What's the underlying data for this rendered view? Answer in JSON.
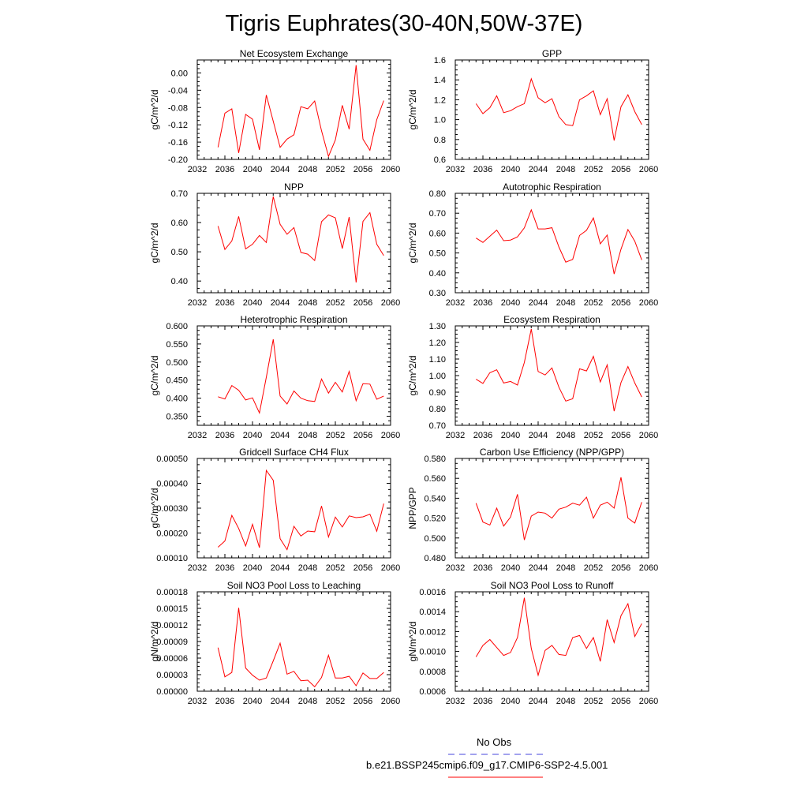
{
  "figure": {
    "title": "Tigris Euphrates(30-40N,50W-37E)",
    "line_color": "#ff0000",
    "obs_color": "#4444dd"
  },
  "legend": {
    "obs_label": "No Obs",
    "model_label": "b.e21.BSSP245cmip6.f09_g17.CMIP6-SSP2-4.5.001"
  },
  "chart_data": [
    {
      "type": "line",
      "title": "Net Ecosystem Exchange",
      "ylabel": "gC/m^2/d",
      "xlim": [
        2032,
        2060
      ],
      "ylim": [
        -0.2,
        0.03
      ],
      "xticks": [
        2032,
        2036,
        2040,
        2044,
        2048,
        2052,
        2056,
        2060
      ],
      "yticks": [
        -0.2,
        -0.16,
        -0.12,
        -0.08,
        -0.04,
        0.0
      ],
      "ytick_labels": [
        "-0.20",
        "-0.16",
        "-0.12",
        "-0.08",
        "-0.04",
        "0.00"
      ],
      "x": [
        2035,
        2036,
        2037,
        2038,
        2039,
        2040,
        2041,
        2042,
        2043,
        2044,
        2045,
        2046,
        2047,
        2048,
        2049,
        2050,
        2051,
        2052,
        2053,
        2054,
        2055,
        2056,
        2057,
        2058,
        2059
      ],
      "y": [
        -0.172,
        -0.093,
        -0.083,
        -0.185,
        -0.096,
        -0.107,
        -0.178,
        -0.051,
        -0.112,
        -0.172,
        -0.153,
        -0.143,
        -0.078,
        -0.083,
        -0.065,
        -0.134,
        -0.193,
        -0.155,
        -0.075,
        -0.13,
        0.018,
        -0.153,
        -0.179,
        -0.108,
        -0.064
      ]
    },
    {
      "type": "line",
      "title": "GPP",
      "ylabel": "gC/m^2/d",
      "xlim": [
        2032,
        2060
      ],
      "ylim": [
        0.6,
        1.6
      ],
      "xticks": [
        2032,
        2036,
        2040,
        2044,
        2048,
        2052,
        2056,
        2060
      ],
      "yticks": [
        0.6,
        0.8,
        1.0,
        1.2,
        1.4,
        1.6
      ],
      "ytick_labels": [
        "0.6",
        "0.8",
        "1.0",
        "1.2",
        "1.4",
        "1.6"
      ],
      "x": [
        2035,
        2036,
        2037,
        2038,
        2039,
        2040,
        2041,
        2042,
        2043,
        2044,
        2045,
        2046,
        2047,
        2048,
        2049,
        2050,
        2051,
        2052,
        2053,
        2054,
        2055,
        2056,
        2057,
        2058,
        2059
      ],
      "y": [
        1.16,
        1.06,
        1.12,
        1.24,
        1.07,
        1.09,
        1.13,
        1.16,
        1.41,
        1.22,
        1.17,
        1.21,
        1.03,
        0.95,
        0.94,
        1.2,
        1.24,
        1.29,
        1.05,
        1.21,
        0.79,
        1.13,
        1.25,
        1.08,
        0.95
      ]
    },
    {
      "type": "line",
      "title": "NPP",
      "ylabel": "gC/m^2/d",
      "xlim": [
        2032,
        2060
      ],
      "ylim": [
        0.36,
        0.7
      ],
      "xticks": [
        2032,
        2036,
        2040,
        2044,
        2048,
        2052,
        2056,
        2060
      ],
      "yticks": [
        0.4,
        0.5,
        0.6,
        0.7
      ],
      "ytick_labels": [
        "0.40",
        "0.50",
        "0.60",
        "0.70"
      ],
      "x": [
        2035,
        2036,
        2037,
        2038,
        2039,
        2040,
        2041,
        2042,
        2043,
        2044,
        2045,
        2046,
        2047,
        2048,
        2049,
        2050,
        2051,
        2052,
        2053,
        2054,
        2055,
        2056,
        2057,
        2058,
        2059
      ],
      "y": [
        0.588,
        0.508,
        0.537,
        0.621,
        0.51,
        0.526,
        0.556,
        0.532,
        0.689,
        0.594,
        0.56,
        0.583,
        0.498,
        0.492,
        0.47,
        0.603,
        0.626,
        0.616,
        0.511,
        0.619,
        0.395,
        0.604,
        0.634,
        0.526,
        0.487
      ]
    },
    {
      "type": "line",
      "title": "Autotrophic Respiration",
      "ylabel": "gC/m^2/d",
      "xlim": [
        2032,
        2060
      ],
      "ylim": [
        0.3,
        0.8
      ],
      "xticks": [
        2032,
        2036,
        2040,
        2044,
        2048,
        2052,
        2056,
        2060
      ],
      "yticks": [
        0.3,
        0.4,
        0.5,
        0.6,
        0.7,
        0.8
      ],
      "ytick_labels": [
        "0.30",
        "0.40",
        "0.50",
        "0.60",
        "0.70",
        "0.80"
      ],
      "x": [
        2035,
        2036,
        2037,
        2038,
        2039,
        2040,
        2041,
        2042,
        2043,
        2044,
        2045,
        2046,
        2047,
        2048,
        2049,
        2050,
        2051,
        2052,
        2053,
        2054,
        2055,
        2056,
        2057,
        2058,
        2059
      ],
      "y": [
        0.575,
        0.553,
        0.584,
        0.615,
        0.562,
        0.565,
        0.581,
        0.626,
        0.717,
        0.621,
        0.621,
        0.627,
        0.53,
        0.454,
        0.468,
        0.588,
        0.614,
        0.676,
        0.546,
        0.59,
        0.394,
        0.519,
        0.618,
        0.559,
        0.465
      ]
    },
    {
      "type": "line",
      "title": "Heterotrophic Respiration",
      "ylabel": "gC/m^2/d",
      "xlim": [
        2032,
        2060
      ],
      "ylim": [
        0.325,
        0.6
      ],
      "xticks": [
        2032,
        2036,
        2040,
        2044,
        2048,
        2052,
        2056,
        2060
      ],
      "yticks": [
        0.35,
        0.4,
        0.45,
        0.5,
        0.55,
        0.6
      ],
      "ytick_labels": [
        "0.350",
        "0.400",
        "0.450",
        "0.500",
        "0.550",
        "0.600"
      ],
      "x": [
        2035,
        2036,
        2037,
        2038,
        2039,
        2040,
        2041,
        2042,
        2043,
        2044,
        2045,
        2046,
        2047,
        2048,
        2049,
        2050,
        2051,
        2052,
        2053,
        2054,
        2055,
        2056,
        2057,
        2058,
        2059
      ],
      "y": [
        0.404,
        0.398,
        0.435,
        0.422,
        0.395,
        0.401,
        0.359,
        0.458,
        0.563,
        0.406,
        0.384,
        0.42,
        0.4,
        0.393,
        0.391,
        0.453,
        0.414,
        0.444,
        0.417,
        0.474,
        0.393,
        0.44,
        0.439,
        0.397,
        0.406
      ]
    },
    {
      "type": "line",
      "title": "Ecosystem Respiration",
      "ylabel": "gC/m^2/d",
      "xlim": [
        2032,
        2060
      ],
      "ylim": [
        0.7,
        1.3
      ],
      "xticks": [
        2032,
        2036,
        2040,
        2044,
        2048,
        2052,
        2056,
        2060
      ],
      "yticks": [
        0.7,
        0.8,
        0.9,
        1.0,
        1.1,
        1.2,
        1.3
      ],
      "ytick_labels": [
        "0.70",
        "0.80",
        "0.90",
        "1.00",
        "1.10",
        "1.20",
        "1.30"
      ],
      "x": [
        2035,
        2036,
        2037,
        2038,
        2039,
        2040,
        2041,
        2042,
        2043,
        2044,
        2045,
        2046,
        2047,
        2048,
        2049,
        2050,
        2051,
        2052,
        2053,
        2054,
        2055,
        2056,
        2057,
        2058,
        2059
      ],
      "y": [
        0.978,
        0.953,
        1.017,
        1.035,
        0.955,
        0.965,
        0.943,
        1.079,
        1.281,
        1.025,
        1.004,
        1.046,
        0.93,
        0.846,
        0.86,
        1.041,
        1.028,
        1.116,
        0.962,
        1.065,
        0.785,
        0.958,
        1.055,
        0.955,
        0.871
      ]
    },
    {
      "type": "line",
      "title": "Gridcell Surface CH4 Flux",
      "ylabel": "gC/m^2/d",
      "xlim": [
        2032,
        2060
      ],
      "ylim": [
        0.0001,
        0.0005
      ],
      "xticks": [
        2032,
        2036,
        2040,
        2044,
        2048,
        2052,
        2056,
        2060
      ],
      "yticks": [
        0.0001,
        0.0002,
        0.0003,
        0.0004,
        0.0005
      ],
      "ytick_labels": [
        "0.00010",
        "0.00020",
        "0.00030",
        "0.00040",
        "0.00050"
      ],
      "x": [
        2035,
        2036,
        2037,
        2038,
        2039,
        2040,
        2041,
        2042,
        2043,
        2044,
        2045,
        2046,
        2047,
        2048,
        2049,
        2050,
        2051,
        2052,
        2053,
        2054,
        2055,
        2056,
        2057,
        2058,
        2059
      ],
      "y": [
        0.000143,
        0.000168,
        0.000271,
        0.000218,
        0.000148,
        0.000235,
        0.000141,
        0.000452,
        0.000412,
        0.000177,
        0.000133,
        0.000227,
        0.000188,
        0.000208,
        0.000205,
        0.000309,
        0.000184,
        0.000264,
        0.000224,
        0.000269,
        0.000262,
        0.000265,
        0.000276,
        0.000207,
        0.000318
      ]
    },
    {
      "type": "line",
      "title": "Carbon Use Efficiency (NPP/GPP)",
      "ylabel": "NPP/GPP",
      "xlim": [
        2032,
        2060
      ],
      "ylim": [
        0.48,
        0.58
      ],
      "xticks": [
        2032,
        2036,
        2040,
        2044,
        2048,
        2052,
        2056,
        2060
      ],
      "yticks": [
        0.48,
        0.5,
        0.52,
        0.54,
        0.56,
        0.58
      ],
      "ytick_labels": [
        "0.480",
        "0.500",
        "0.520",
        "0.540",
        "0.560",
        "0.580"
      ],
      "x": [
        2035,
        2036,
        2037,
        2038,
        2039,
        2040,
        2041,
        2042,
        2043,
        2044,
        2045,
        2046,
        2047,
        2048,
        2049,
        2050,
        2051,
        2052,
        2053,
        2054,
        2055,
        2056,
        2057,
        2058,
        2059
      ],
      "y": [
        0.535,
        0.516,
        0.513,
        0.53,
        0.512,
        0.521,
        0.544,
        0.498,
        0.522,
        0.526,
        0.525,
        0.52,
        0.529,
        0.531,
        0.535,
        0.533,
        0.541,
        0.52,
        0.533,
        0.536,
        0.53,
        0.561,
        0.52,
        0.515,
        0.536
      ]
    },
    {
      "type": "line",
      "title": "Soil NO3 Pool Loss to Leaching",
      "ylabel": "gN/m^2/d",
      "xlim": [
        2032,
        2060
      ],
      "ylim": [
        0.0,
        0.00018
      ],
      "xticks": [
        2032,
        2036,
        2040,
        2044,
        2048,
        2052,
        2056,
        2060
      ],
      "yticks": [
        0.0,
        3e-05,
        6e-05,
        9e-05,
        0.00012,
        0.00015,
        0.00018
      ],
      "ytick_labels": [
        "0.00000",
        "0.00003",
        "0.00006",
        "0.00009",
        "0.00012",
        "0.00015",
        "0.00018"
      ],
      "x": [
        2035,
        2036,
        2037,
        2038,
        2039,
        2040,
        2041,
        2042,
        2043,
        2044,
        2045,
        2046,
        2047,
        2048,
        2049,
        2050,
        2051,
        2052,
        2053,
        2054,
        2055,
        2056,
        2057,
        2058,
        2059
      ],
      "y": [
        7.9e-05,
        2.6e-05,
        3.4e-05,
        0.000151,
        4.2e-05,
        2.9e-05,
        2e-05,
        2.4e-05,
        5.5e-05,
        8.7e-05,
        3.1e-05,
        3.6e-05,
        1.9e-05,
        2e-05,
        8e-06,
        2.5e-05,
        6.5e-05,
        2.4e-05,
        2.4e-05,
        2.7e-05,
        1e-05,
        3.3e-05,
        2.3e-05,
        2.3e-05,
        3.4e-05
      ]
    },
    {
      "type": "line",
      "title": "Soil NO3 Pool Loss to Runoff",
      "ylabel": "gN/m^2/d",
      "xlim": [
        2032,
        2060
      ],
      "ylim": [
        0.0006,
        0.0016
      ],
      "xticks": [
        2032,
        2036,
        2040,
        2044,
        2048,
        2052,
        2056,
        2060
      ],
      "yticks": [
        0.0006,
        0.0008,
        0.001,
        0.0012,
        0.0014,
        0.0016
      ],
      "ytick_labels": [
        "0.0006",
        "0.0008",
        "0.0010",
        "0.0012",
        "0.0014",
        "0.0016"
      ],
      "x": [
        2035,
        2036,
        2037,
        2038,
        2039,
        2040,
        2041,
        2042,
        2043,
        2044,
        2045,
        2046,
        2047,
        2048,
        2049,
        2050,
        2051,
        2052,
        2053,
        2054,
        2055,
        2056,
        2057,
        2058,
        2059
      ],
      "y": [
        0.000945,
        0.00106,
        0.00112,
        0.00104,
        0.00096,
        0.00099,
        0.00114,
        0.00154,
        0.00103,
        0.00076,
        0.00101,
        0.00106,
        0.00097,
        0.00096,
        0.00114,
        0.00116,
        0.00103,
        0.00114,
        0.0009,
        0.00132,
        0.00109,
        0.00136,
        0.00148,
        0.00115,
        0.00128
      ]
    }
  ]
}
